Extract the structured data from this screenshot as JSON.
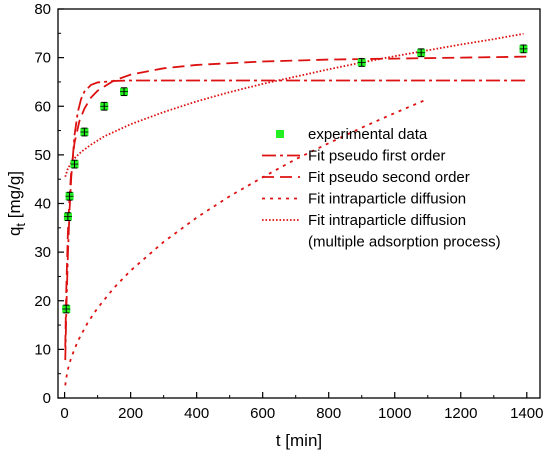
{
  "chart_data": {
    "type": "scatter",
    "xlabel": "t [min]",
    "ylabel_main": "q",
    "ylabel_sub": "t",
    "ylabel_unit": " [mg/g]",
    "xlim": [
      -20,
      1440
    ],
    "ylim": [
      0,
      80
    ],
    "xticks": [
      0,
      200,
      400,
      600,
      800,
      1000,
      1200,
      1400
    ],
    "yticks": [
      0,
      10,
      20,
      30,
      40,
      50,
      60,
      70,
      80
    ],
    "grid": false,
    "legend_position": "center-right",
    "colors": {
      "experimental": "#22ee22",
      "fit": "#dd1111",
      "axis": "#000000"
    },
    "experimental": {
      "name": "experimental data",
      "x": [
        5,
        10,
        15,
        30,
        60,
        120,
        180,
        900,
        1080,
        1390
      ],
      "y": [
        18.3,
        37.3,
        41.5,
        48.1,
        54.7,
        60.0,
        63.0,
        69.0,
        71.0,
        71.8
      ],
      "yerr": [
        0.8,
        0.8,
        0.8,
        0.8,
        0.8,
        0.8,
        0.8,
        0.8,
        0.8,
        0.8
      ]
    },
    "series": [
      {
        "name": "Fit pseudo first order",
        "style": "dashdot",
        "x": [
          2,
          5,
          10,
          15,
          20,
          30,
          40,
          50,
          60,
          80,
          100,
          150,
          200,
          300,
          500,
          800,
          1100,
          1400
        ],
        "y": [
          7.8,
          17.5,
          29.6,
          38.6,
          45.3,
          54.0,
          58.8,
          61.5,
          63.0,
          64.4,
          64.9,
          65.2,
          65.3,
          65.3,
          65.3,
          65.3,
          65.3,
          65.3
        ]
      },
      {
        "name": "Fit pseudo second order",
        "style": "dashed",
        "x": [
          2,
          5,
          10,
          15,
          20,
          30,
          45,
          60,
          80,
          100,
          150,
          200,
          300,
          400,
          600,
          800,
          1000,
          1200,
          1400
        ],
        "y": [
          10.5,
          22.0,
          34.0,
          41.5,
          46.5,
          52.5,
          57.0,
          59.5,
          61.8,
          63.2,
          65.3,
          66.5,
          67.8,
          68.5,
          69.2,
          69.6,
          69.8,
          70.0,
          70.2
        ]
      },
      {
        "name": "Fit intraparticle diffusion",
        "style": "dotted",
        "x": [
          2,
          5,
          10,
          20,
          40,
          70,
          100,
          150,
          200,
          300,
          400,
          500,
          600,
          700,
          800,
          900,
          1000,
          1100
        ],
        "y": [
          2.6,
          4.1,
          5.9,
          8.3,
          11.7,
          15.5,
          18.5,
          22.7,
          26.2,
          32.1,
          37.1,
          41.5,
          45.4,
          49.1,
          52.4,
          55.6,
          58.6,
          61.5
        ]
      },
      {
        "name": "Fit intraparticle diffusion\n(multiple adsorption process)",
        "style": "finedotted",
        "x": [
          2,
          10,
          20,
          30,
          50,
          80,
          120,
          200,
          300,
          400,
          500,
          600,
          700,
          800,
          900,
          1000,
          1100,
          1200,
          1300,
          1390
        ],
        "y": [
          45.5,
          47.2,
          48.4,
          49.3,
          50.6,
          52.1,
          53.8,
          56.3,
          58.8,
          61.0,
          62.9,
          64.6,
          66.1,
          67.6,
          69.0,
          70.3,
          71.5,
          72.7,
          73.8,
          74.9
        ]
      }
    ],
    "legend": [
      {
        "text": "experimental data"
      },
      {
        "text": "Fit pseudo first order"
      },
      {
        "text": "Fit pseudo second order"
      },
      {
        "text": "Fit intraparticle diffusion"
      },
      {
        "text": "Fit intraparticle diffusion"
      },
      {
        "text": "(multiple adsorption process)"
      }
    ]
  }
}
